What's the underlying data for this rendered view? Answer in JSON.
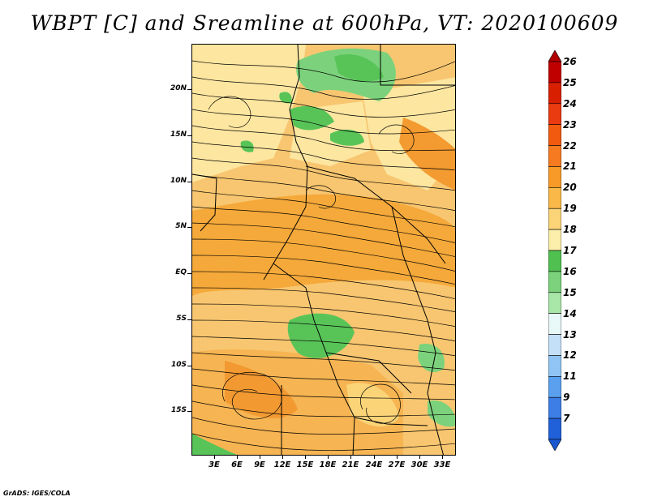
{
  "title": "WBPT [C] and Sreamline at 600hPa, VT: 2020100609",
  "credit": "GrADS: IGES/COLA",
  "map": {
    "lat_labels": [
      "20N",
      "15N",
      "10N",
      "5N",
      "EQ",
      "5S",
      "10S",
      "15S"
    ],
    "lon_labels": [
      "3E",
      "6E",
      "9E",
      "12E",
      "15E",
      "18E",
      "21E",
      "24E",
      "27E",
      "30E",
      "33E"
    ],
    "fill_description_colors": {
      "orange_warm": "#f5a93a",
      "light_orange": "#f8c670",
      "pale_yellow": "#fde6a0",
      "green": "#58c458",
      "light_green": "#98de8c"
    },
    "streamline_color": "#000000"
  },
  "colorbar": {
    "levels": [
      "26",
      "25",
      "24",
      "23",
      "22",
      "21",
      "20",
      "19",
      "18",
      "17",
      "16",
      "15",
      "14",
      "13",
      "12",
      "11",
      "9",
      "7"
    ],
    "colors": [
      "#c00000",
      "#d82000",
      "#ea3a10",
      "#f25a10",
      "#f67a20",
      "#f89a28",
      "#f9b848",
      "#fbd478",
      "#fbeeaa",
      "#50c050",
      "#7cd27c",
      "#a8e6a8",
      "#e8f8f8",
      "#c4e0f8",
      "#90c4f4",
      "#5aa0ee",
      "#3c7ee6",
      "#2060d8"
    ],
    "top_arrow_color": "#b00000",
    "bottom_arrow_color": "#1a58d0"
  }
}
